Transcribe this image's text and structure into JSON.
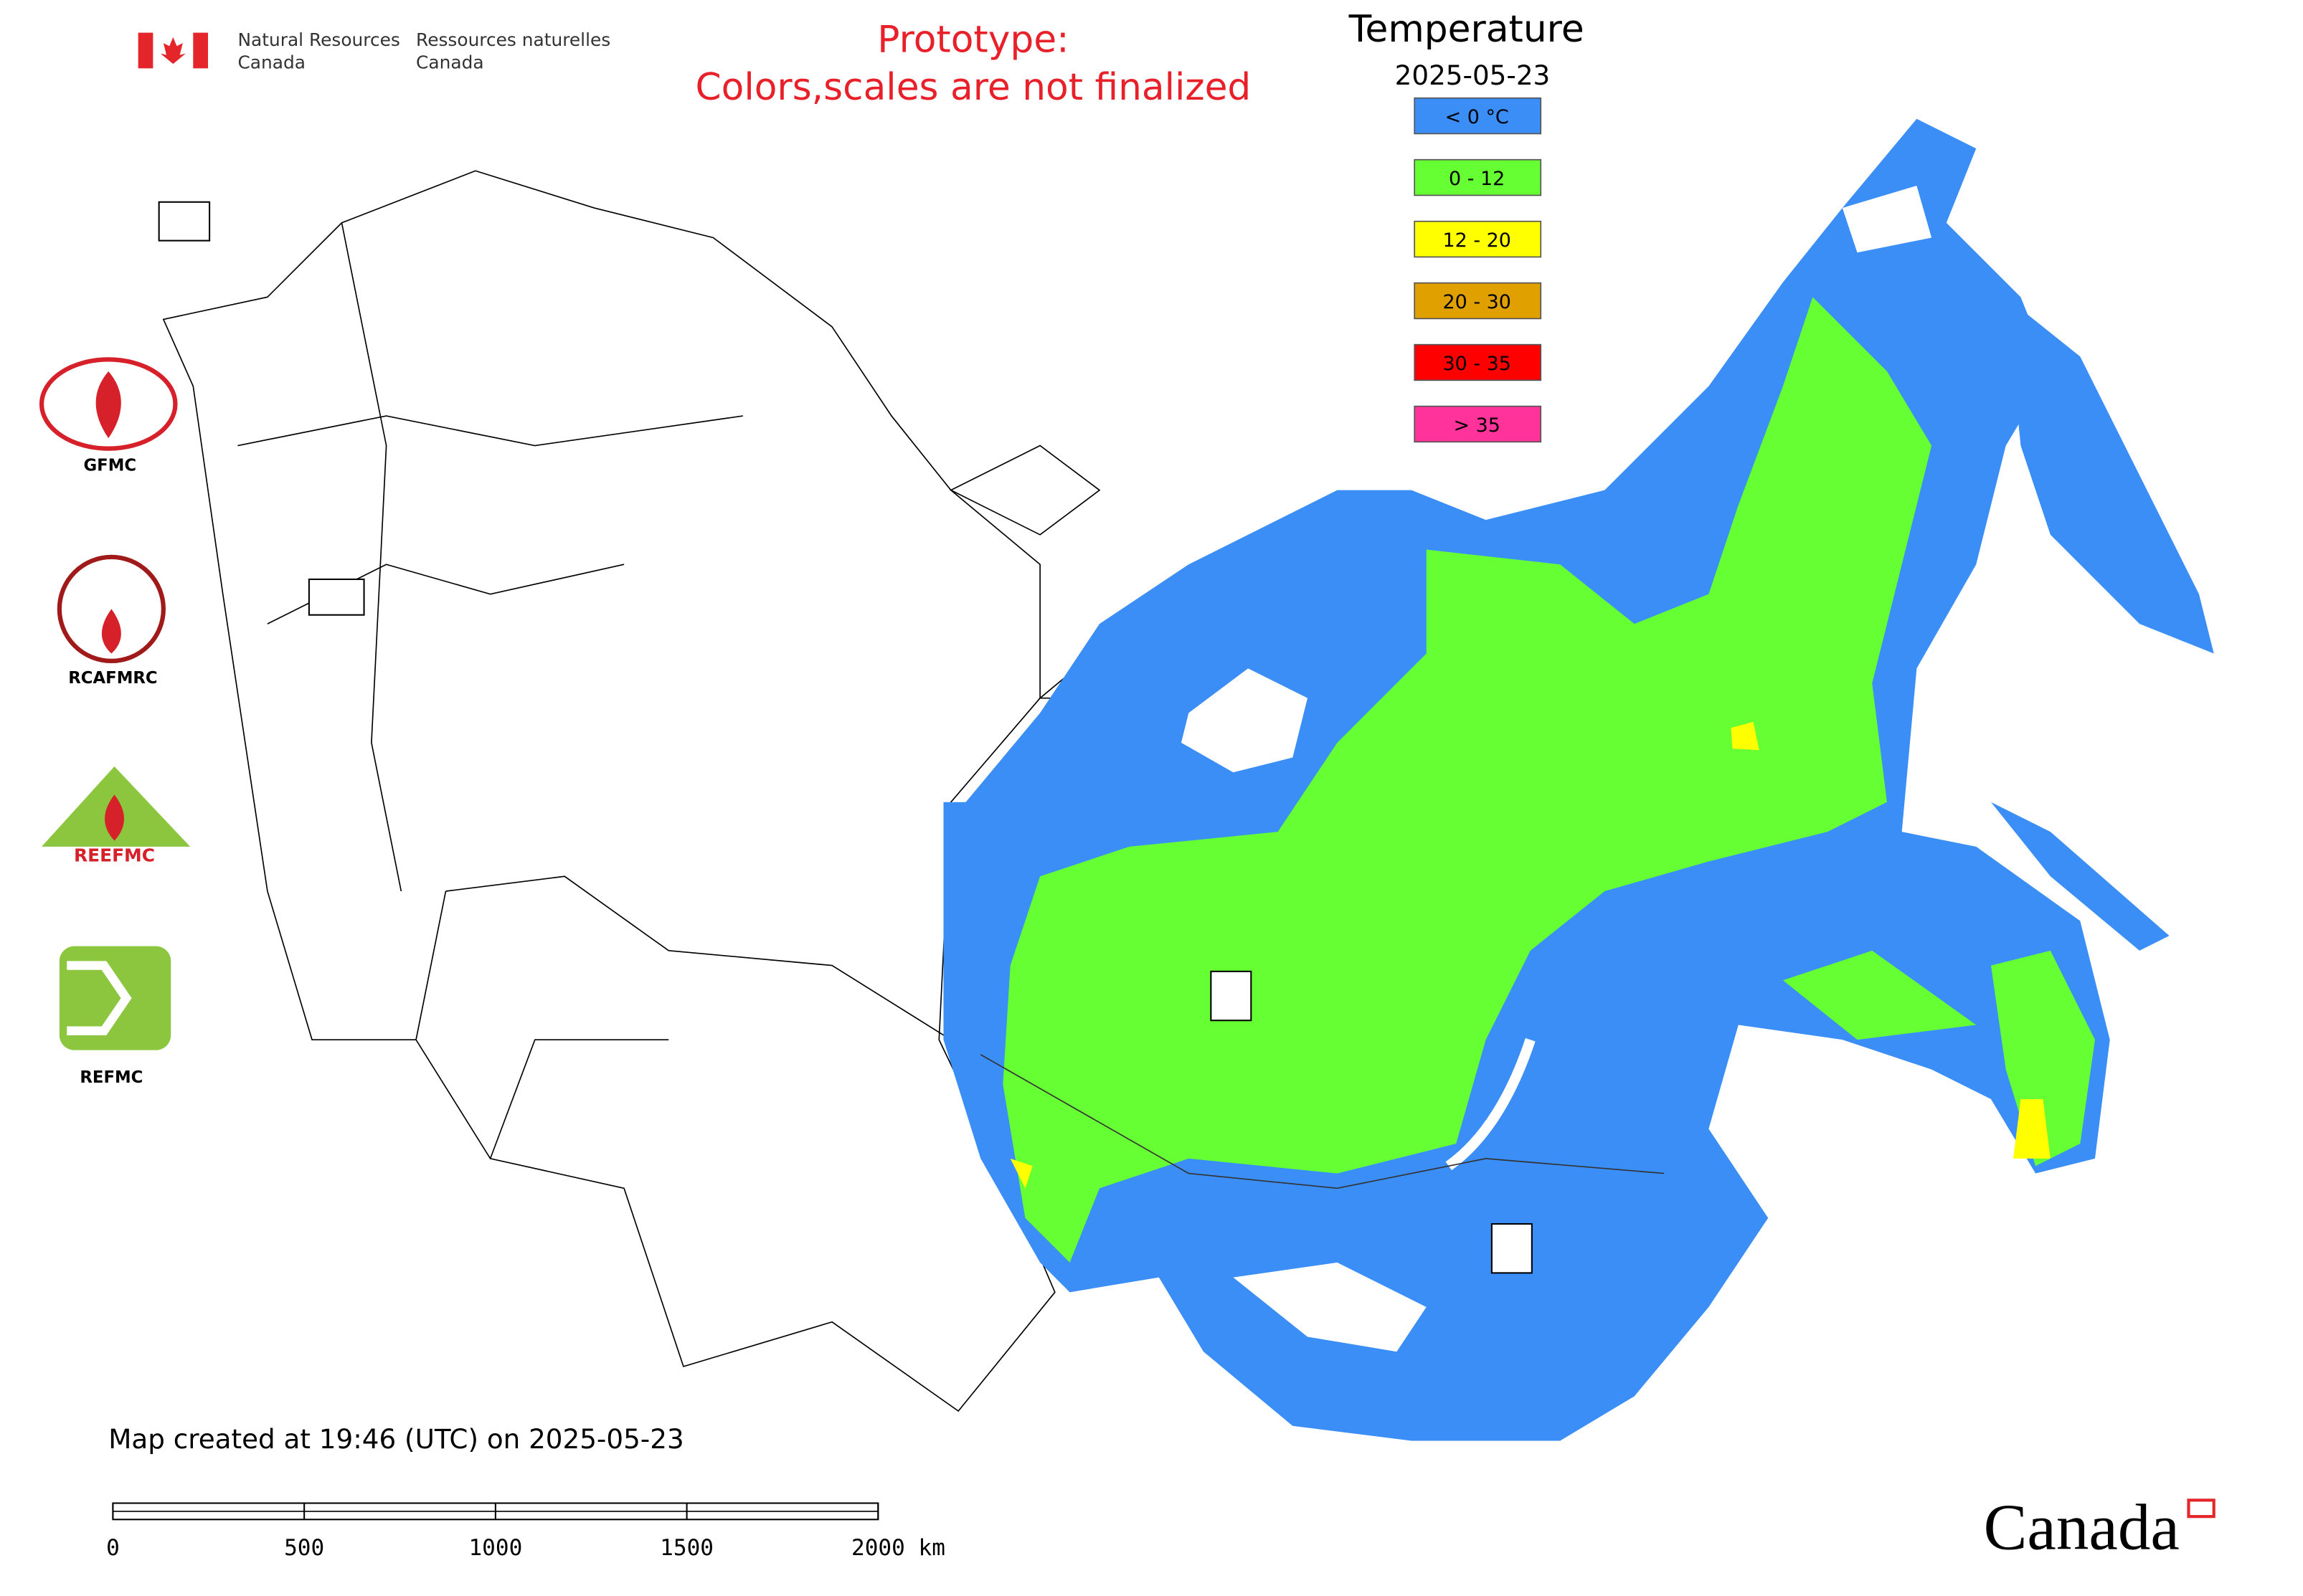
{
  "header": {
    "department_en_lines": [
      "Natural Resources",
      "Canada"
    ],
    "department_fr_lines": [
      "Ressources naturelles",
      "Canada"
    ]
  },
  "notice_lines": [
    "Prototype:",
    "Colors,scales are not finalized"
  ],
  "legend": {
    "title": "Temperature",
    "date": "2025-05-23",
    "items": [
      {
        "label": "< 0 °C",
        "color": "#3a8ef6"
      },
      {
        "label": "0 - 12",
        "color": "#66ff33"
      },
      {
        "label": "12 - 20",
        "color": "#ffff00"
      },
      {
        "label": "20 - 30",
        "color": "#e0a000"
      },
      {
        "label": "30 - 35",
        "color": "#ff0000"
      },
      {
        "label": "> 35",
        "color": "#ff3399"
      }
    ]
  },
  "logos": [
    "GFMC",
    "RCAFMRC",
    "REEFMC",
    "REFMC"
  ],
  "footer": {
    "created": "Map created at 19:46 (UTC) on 2025-05-23",
    "scale_labels": [
      "0",
      "500",
      "1000",
      "1500",
      "2000 km"
    ],
    "wordmark": "Canada"
  }
}
